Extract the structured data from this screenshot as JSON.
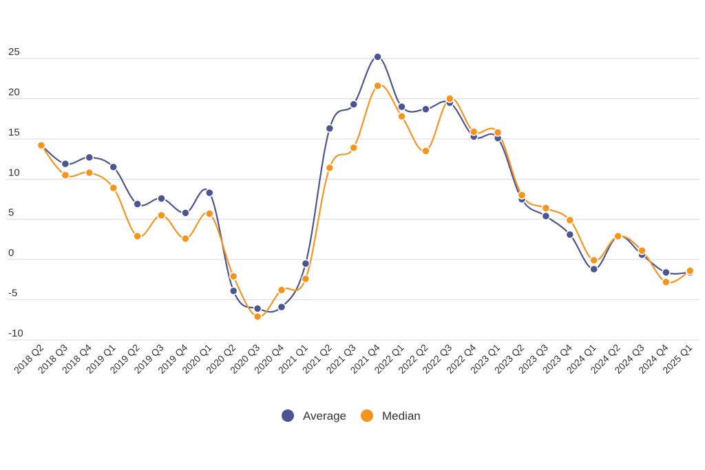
{
  "chart_data": {
    "type": "line",
    "title": "",
    "xlabel": "",
    "ylabel": "",
    "ylim": [
      -10,
      25
    ],
    "yticks": [
      25,
      20,
      15,
      10,
      5,
      0,
      -5,
      -10
    ],
    "grid": true,
    "legend_position": "bottom-center",
    "categories": [
      "2018 Q2",
      "2018 Q3",
      "2018 Q4",
      "2019 Q1",
      "2019 Q2",
      "2019 Q3",
      "2019 Q4",
      "2020 Q1",
      "2020 Q2",
      "2020 Q3",
      "2020 Q4",
      "2021 Q1",
      "2021 Q2",
      "2021 Q3",
      "2021 Q4",
      "2022 Q1",
      "2022 Q2",
      "2022 Q3",
      "2022 Q4",
      "2023 Q1",
      "2023 Q2",
      "2023 Q3",
      "2023 Q4",
      "2024 Q1",
      "2024 Q2",
      "2024 Q3",
      "2024 Q4",
      "2025 Q1"
    ],
    "series": [
      {
        "name": "Average",
        "color": "#4a5591",
        "values": [
          14.2,
          11.9,
          12.7,
          11.5,
          6.9,
          7.6,
          5.8,
          8.3,
          -3.9,
          -6.1,
          -5.9,
          -0.5,
          16.3,
          19.3,
          25.2,
          19.0,
          18.7,
          19.5,
          15.3,
          15.1,
          7.5,
          5.4,
          3.1,
          -1.2,
          2.9,
          0.6,
          -1.6,
          -1.6
        ]
      },
      {
        "name": "Median",
        "color": "#f7941d",
        "values": [
          14.2,
          10.5,
          10.8,
          8.9,
          2.9,
          5.5,
          2.6,
          5.7,
          -2.1,
          -7.1,
          -3.8,
          -2.4,
          11.4,
          13.9,
          21.6,
          17.8,
          13.5,
          20.0,
          15.9,
          15.8,
          8.0,
          6.4,
          4.9,
          -0.1,
          2.9,
          1.1,
          -2.8,
          -1.4
        ]
      }
    ]
  }
}
